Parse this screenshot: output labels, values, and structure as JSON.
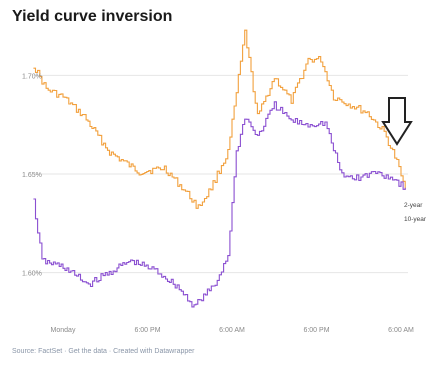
{
  "chart_data": {
    "type": "line",
    "title": "Yield curve inversion",
    "y_ticks": [
      {
        "value": 1.7,
        "label": "1.70%"
      },
      {
        "value": 1.65,
        "label": "1.65%"
      },
      {
        "value": 1.6,
        "label": "1.60%"
      }
    ],
    "ylim": [
      1.575,
      1.723
    ],
    "x_ticks": [
      {
        "t": 0,
        "label": "Monday"
      },
      {
        "t": 1,
        "label": "6:00 PM"
      },
      {
        "t": 2,
        "label": "6:00 AM"
      },
      {
        "t": 3,
        "label": "6:00 PM"
      },
      {
        "t": 4,
        "label": "6:00 AM"
      }
    ],
    "grid": true,
    "series": [
      {
        "name": "10-year",
        "color": "#f2a03d",
        "x": [
          -0.35,
          -0.2,
          0,
          0.25,
          0.55,
          0.9,
          1.2,
          1.45,
          1.6,
          1.75,
          1.95,
          2.05,
          2.15,
          2.3,
          2.5,
          2.7,
          2.9,
          3.05,
          3.2,
          3.4,
          3.6,
          3.8,
          3.95,
          4.05
        ],
        "values": [
          1.705,
          1.693,
          1.689,
          1.679,
          1.661,
          1.651,
          1.653,
          1.641,
          1.633,
          1.643,
          1.661,
          1.691,
          1.722,
          1.679,
          1.699,
          1.687,
          1.708,
          1.708,
          1.689,
          1.685,
          1.681,
          1.671,
          1.656,
          1.642
        ]
      },
      {
        "name": "2-year",
        "color": "#8a4fd1",
        "x": [
          -0.35,
          -0.25,
          0,
          0.3,
          0.5,
          0.8,
          1.1,
          1.35,
          1.55,
          1.8,
          1.95,
          2.05,
          2.15,
          2.3,
          2.5,
          2.7,
          2.9,
          3.1,
          3.3,
          3.5,
          3.7,
          3.9,
          4.05
        ],
        "values": [
          1.636,
          1.606,
          1.603,
          1.594,
          1.599,
          1.606,
          1.601,
          1.593,
          1.583,
          1.594,
          1.609,
          1.661,
          1.679,
          1.669,
          1.685,
          1.677,
          1.675,
          1.676,
          1.649,
          1.648,
          1.651,
          1.648,
          1.643
        ]
      }
    ]
  },
  "source": "Source: FactSet · Get the data · Created with Datawrapper"
}
